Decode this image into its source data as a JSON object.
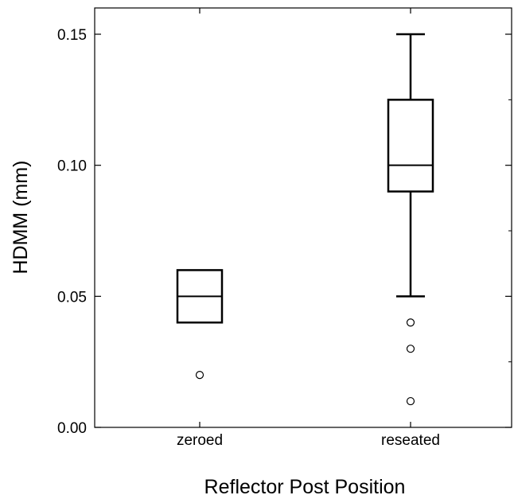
{
  "chart_data": {
    "type": "box",
    "title": "",
    "xlabel": "Reflector Post Position",
    "ylabel": "HDMM (mm)",
    "ylim": [
      0.0,
      0.16
    ],
    "yticks": [
      0.0,
      0.05,
      0.1,
      0.15
    ],
    "ytick_labels": [
      "0.00",
      "0.05",
      "0.10",
      "0.15"
    ],
    "grid": false,
    "categories": [
      "zeroed",
      "reseated"
    ],
    "boxes": [
      {
        "category": "zeroed",
        "q1": 0.04,
        "median": 0.05,
        "q3": 0.06,
        "whisker_low": null,
        "whisker_high": null,
        "outliers": [
          0.02
        ]
      },
      {
        "category": "reseated",
        "q1": 0.09,
        "median": 0.1,
        "q3": 0.125,
        "whisker_low": 0.05,
        "whisker_high": 0.15,
        "outliers": [
          0.04,
          0.03,
          0.01
        ]
      }
    ]
  }
}
